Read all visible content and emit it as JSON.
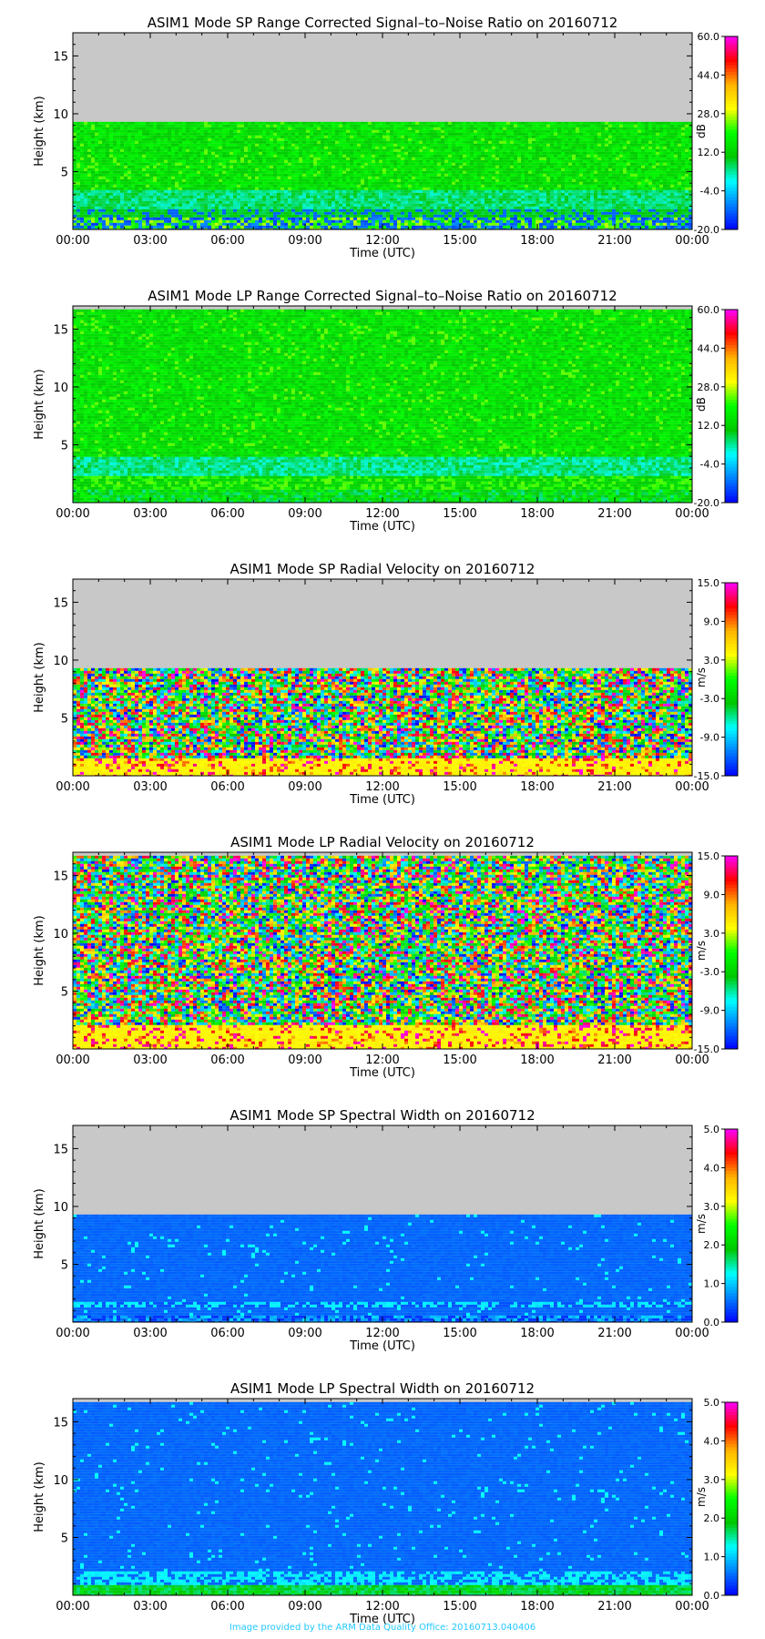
{
  "footer": "Image provided by the ARM Data Quality Office: 20160713.040406",
  "chart_data": [
    {
      "type": "heatmap",
      "title": "ASIM1 Mode SP Range Corrected Signal–to–Noise Ratio on 20160712",
      "xlabel": "Time (UTC)",
      "ylabel": "Height (km)",
      "x_ticks": [
        "00:00",
        "03:00",
        "06:00",
        "09:00",
        "12:00",
        "15:00",
        "18:00",
        "21:00",
        "00:00"
      ],
      "xlim": [
        0,
        24
      ],
      "ylim": [
        0,
        17
      ],
      "y_ticks": [
        5,
        10,
        15
      ],
      "data_top_km": 9.3,
      "pattern": "snr_sp",
      "colorbar": {
        "unit": "dB",
        "ticks": [
          "60.0",
          "44.0",
          "28.0",
          "12.0",
          "-4.0",
          "-20.0"
        ],
        "range": [
          -20,
          60
        ]
      }
    },
    {
      "type": "heatmap",
      "title": "ASIM1 Mode LP Range Corrected Signal–to–Noise Ratio on 20160712",
      "xlabel": "Time (UTC)",
      "ylabel": "Height (km)",
      "x_ticks": [
        "00:00",
        "03:00",
        "06:00",
        "09:00",
        "12:00",
        "15:00",
        "18:00",
        "21:00",
        "00:00"
      ],
      "xlim": [
        0,
        24
      ],
      "ylim": [
        0,
        17
      ],
      "y_ticks": [
        5,
        10,
        15
      ],
      "data_top_km": 16.7,
      "pattern": "snr_lp",
      "colorbar": {
        "unit": "dB",
        "ticks": [
          "60.0",
          "44.0",
          "28.0",
          "12.0",
          "-4.0",
          "-20.0"
        ],
        "range": [
          -20,
          60
        ]
      }
    },
    {
      "type": "heatmap",
      "title": "ASIM1 Mode SP Radial Velocity  on 20160712",
      "xlabel": "Time (UTC)",
      "ylabel": "Height (km)",
      "x_ticks": [
        "00:00",
        "03:00",
        "06:00",
        "09:00",
        "12:00",
        "15:00",
        "18:00",
        "21:00",
        "00:00"
      ],
      "xlim": [
        0,
        24
      ],
      "ylim": [
        0,
        17
      ],
      "y_ticks": [
        5,
        10,
        15
      ],
      "data_top_km": 9.3,
      "pattern": "vel_sp",
      "colorbar": {
        "unit": "m/s",
        "ticks": [
          "15.0",
          "9.0",
          "3.0",
          "-3.0",
          "-9.0",
          "-15.0"
        ],
        "range": [
          -15,
          15
        ]
      }
    },
    {
      "type": "heatmap",
      "title": "ASIM1 Mode LP Radial Velocity  on 20160712",
      "xlabel": "Time (UTC)",
      "ylabel": "Height (km)",
      "x_ticks": [
        "00:00",
        "03:00",
        "06:00",
        "09:00",
        "12:00",
        "15:00",
        "18:00",
        "21:00",
        "00:00"
      ],
      "xlim": [
        0,
        24
      ],
      "ylim": [
        0,
        17
      ],
      "y_ticks": [
        5,
        10,
        15
      ],
      "data_top_km": 16.7,
      "pattern": "vel_lp",
      "colorbar": {
        "unit": "m/s",
        "ticks": [
          "15.0",
          "9.0",
          "3.0",
          "-3.0",
          "-9.0",
          "-15.0"
        ],
        "range": [
          -15,
          15
        ]
      }
    },
    {
      "type": "heatmap",
      "title": "ASIM1 Mode SP Spectral Width  on 20160712",
      "xlabel": "Time (UTC)",
      "ylabel": "Height (km)",
      "x_ticks": [
        "00:00",
        "03:00",
        "06:00",
        "09:00",
        "12:00",
        "15:00",
        "18:00",
        "21:00",
        "00:00"
      ],
      "xlim": [
        0,
        24
      ],
      "ylim": [
        0,
        17
      ],
      "y_ticks": [
        5,
        10,
        15
      ],
      "data_top_km": 9.3,
      "pattern": "sw_sp",
      "colorbar": {
        "unit": "m/s",
        "ticks": [
          "5.0",
          "4.0",
          "3.0",
          "2.0",
          "1.0",
          "0.0"
        ],
        "range": [
          0,
          5
        ]
      }
    },
    {
      "type": "heatmap",
      "title": "ASIM1 Mode LP Spectral Width  on 20160712",
      "xlabel": "Time (UTC)",
      "ylabel": "Height (km)",
      "x_ticks": [
        "00:00",
        "03:00",
        "06:00",
        "09:00",
        "12:00",
        "15:00",
        "18:00",
        "21:00",
        "00:00"
      ],
      "xlim": [
        0,
        24
      ],
      "ylim": [
        0,
        17
      ],
      "y_ticks": [
        5,
        10,
        15
      ],
      "data_top_km": 16.7,
      "pattern": "sw_lp",
      "colorbar": {
        "unit": "m/s",
        "ticks": [
          "5.0",
          "4.0",
          "3.0",
          "2.0",
          "1.0",
          "0.0"
        ],
        "range": [
          0,
          5
        ]
      }
    }
  ],
  "colors": {
    "no_data": "#c8c8c8",
    "footer": "#22c8ff",
    "colormap": [
      "#0000ff",
      "#0080ff",
      "#00ffff",
      "#00c800",
      "#00ff00",
      "#ffff00",
      "#ffb400",
      "#ff0000",
      "#ff00ff"
    ]
  }
}
